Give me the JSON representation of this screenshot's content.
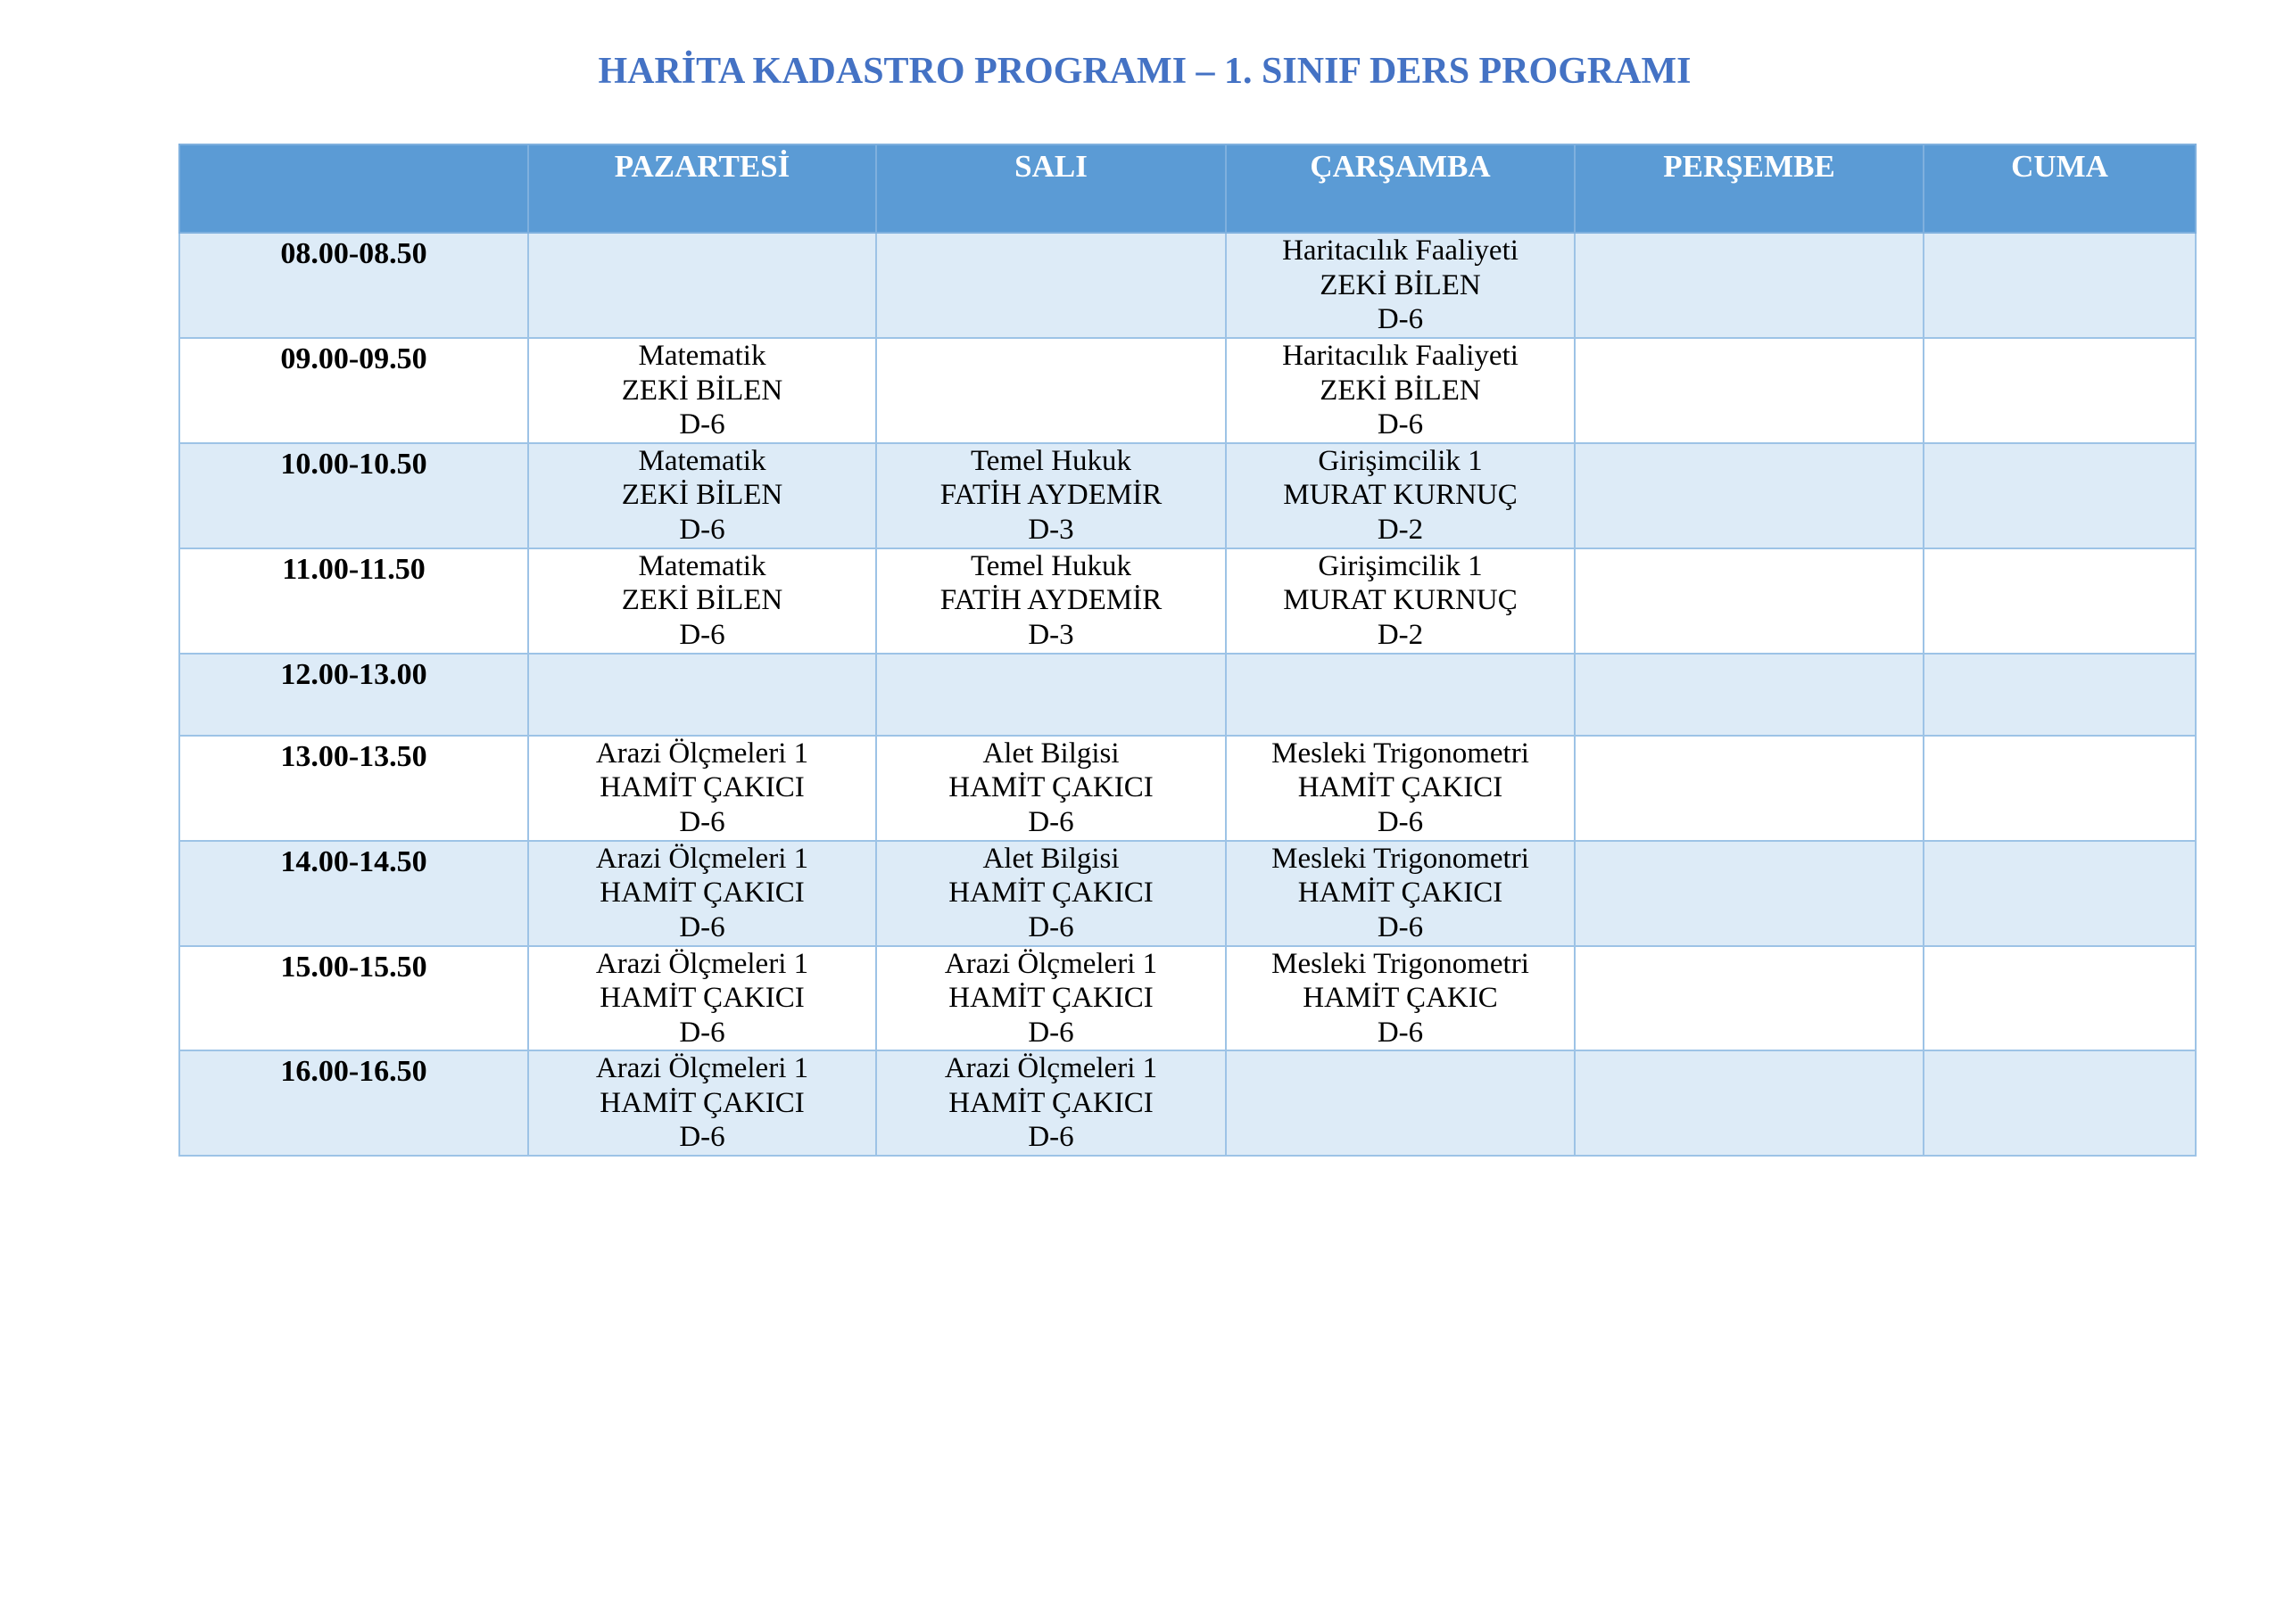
{
  "title": "HARİTA KADASTRO PROGRAMI – 1. SINIF DERS PROGRAMI",
  "colors": {
    "title": "#4472c4",
    "header_bg": "#5b9bd5",
    "alt_row_bg": "#ddebf7",
    "border": "#9dc3e6"
  },
  "columns": [
    "",
    "PAZARTESİ",
    "SALI",
    "ÇARŞAMBA",
    "PERŞEMBE",
    "CUMA"
  ],
  "rows": [
    {
      "time": "08.00-08.50",
      "cells": [
        [],
        [],
        [
          "Haritacılık Faaliyeti",
          "ZEKİ BİLEN",
          "D-6"
        ],
        [],
        []
      ]
    },
    {
      "time": "09.00-09.50",
      "cells": [
        [
          "Matematik",
          "ZEKİ BİLEN",
          "D-6"
        ],
        [],
        [
          "Haritacılık Faaliyeti",
          "ZEKİ BİLEN",
          "D-6"
        ],
        [],
        []
      ]
    },
    {
      "time": "10.00-10.50",
      "cells": [
        [
          "Matematik",
          "ZEKİ BİLEN",
          "D-6"
        ],
        [
          "Temel Hukuk",
          "FATİH AYDEMİR",
          "D-3"
        ],
        [
          "Girişimcilik 1",
          "MURAT KURNUÇ",
          "D-2"
        ],
        [],
        []
      ]
    },
    {
      "time": "11.00-11.50",
      "cells": [
        [
          "Matematik",
          "ZEKİ BİLEN",
          "D-6"
        ],
        [
          "Temel Hukuk",
          "FATİH AYDEMİR",
          "D-3"
        ],
        [
          "Girişimcilik 1",
          "MURAT KURNUÇ",
          "D-2"
        ],
        [],
        []
      ]
    },
    {
      "time": "12.00-13.00",
      "cells": [
        [],
        [],
        [],
        [],
        []
      ]
    },
    {
      "time": "13.00-13.50",
      "cells": [
        [
          "Arazi Ölçmeleri 1",
          "HAMİT ÇAKICI",
          "D-6"
        ],
        [
          "Alet Bilgisi",
          "HAMİT ÇAKICI",
          "D-6"
        ],
        [
          "Mesleki Trigonometri",
          "HAMİT ÇAKICI",
          "D-6"
        ],
        [],
        []
      ]
    },
    {
      "time": "14.00-14.50",
      "cells": [
        [
          "Arazi Ölçmeleri 1",
          "HAMİT ÇAKICI",
          "D-6"
        ],
        [
          "Alet Bilgisi",
          "HAMİT ÇAKICI",
          "D-6"
        ],
        [
          "Mesleki Trigonometri",
          "HAMİT ÇAKICI",
          "D-6"
        ],
        [],
        []
      ]
    },
    {
      "time": "15.00-15.50",
      "cells": [
        [
          "Arazi Ölçmeleri 1",
          "HAMİT ÇAKICI",
          "D-6"
        ],
        [
          "Arazi Ölçmeleri 1",
          "HAMİT ÇAKICI",
          "D-6"
        ],
        [
          "Mesleki Trigonometri",
          "HAMİT ÇAKIC",
          "D-6"
        ],
        [],
        []
      ]
    },
    {
      "time": "16.00-16.50",
      "cells": [
        [
          "Arazi Ölçmeleri 1",
          "HAMİT ÇAKICI",
          "D-6"
        ],
        [
          "Arazi Ölçmeleri 1",
          "HAMİT ÇAKICI",
          "D-6"
        ],
        [],
        [],
        []
      ]
    }
  ]
}
